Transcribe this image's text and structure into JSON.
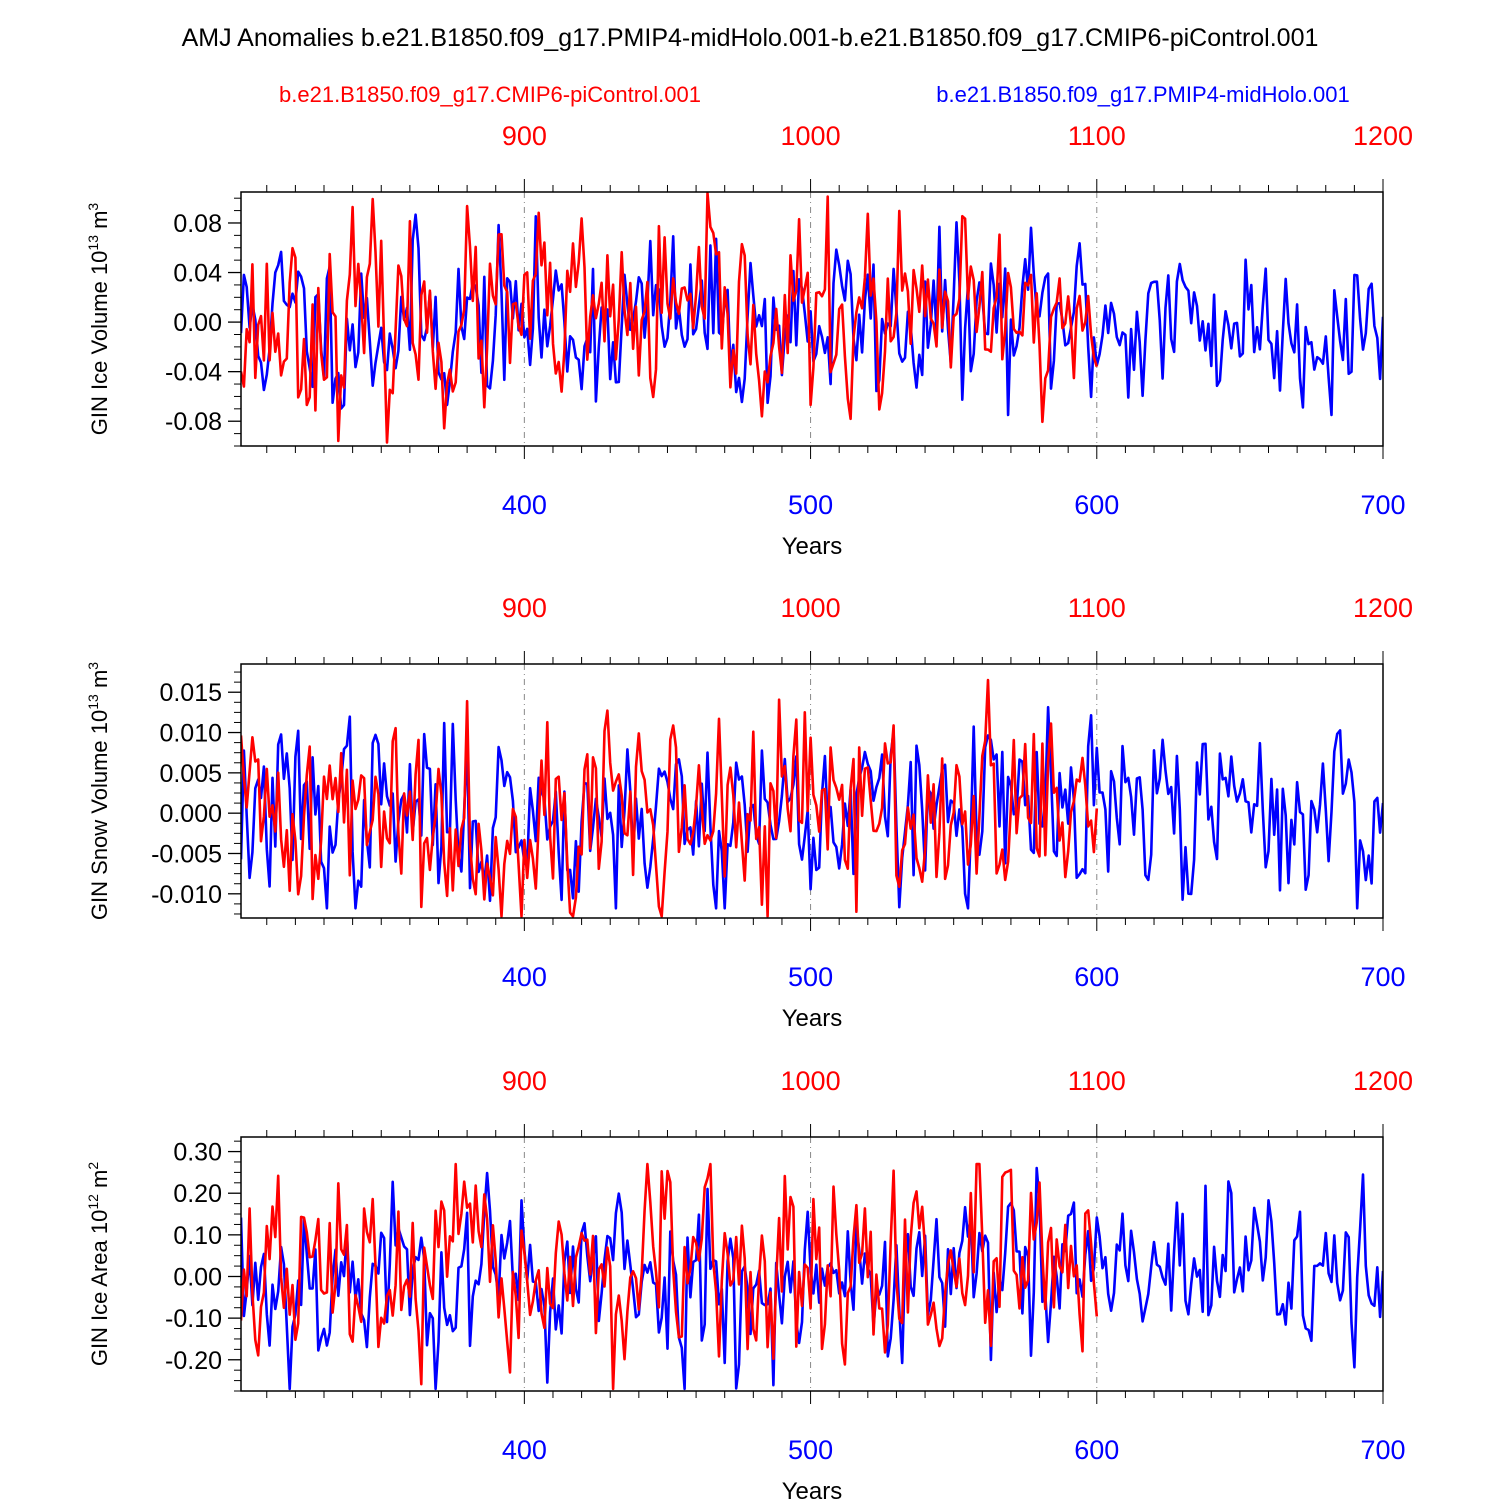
{
  "figure": {
    "title": "AMJ Anomalies b.e21.B1850.f09_g17.PMIP4-midHolo.001-b.e21.B1850.f09_g17.CMIP6-piControl.001",
    "legend_left": "b.e21.B1850.f09_g17.CMIP6-piControl.001",
    "legend_right": "b.e21.B1850.f09_g17.PMIP4-midHolo.001"
  },
  "colors": {
    "control": "#ff0000",
    "midholo": "#0000ff",
    "axis": "#000000",
    "refline": "#888888"
  },
  "chart_data": [
    {
      "type": "line",
      "title": "",
      "ylabel": "GIN Ice Volume 10^13 m^3",
      "ylabel_base": "GIN Ice Volume 10",
      "ylabel_exp": "13",
      "ylabel_unit": "m",
      "ylabel_unit_exp": "3",
      "xlabel": "Years",
      "xlim": [
        301,
        700
      ],
      "top_xlim": [
        801,
        1200
      ],
      "ylim": [
        -0.1,
        0.105
      ],
      "yticks": [
        -0.08,
        -0.04,
        0.0,
        0.04,
        0.08
      ],
      "ytick_labels": [
        "-0.08",
        "-0.04",
        "0.00",
        "0.04",
        "0.08"
      ],
      "xticks": [
        400,
        500,
        600,
        700
      ],
      "xtick_labels": [
        "400",
        "500",
        "600",
        "700"
      ],
      "top_xticks": [
        900,
        1000,
        1100,
        1200
      ],
      "top_xtick_labels": [
        "900",
        "1000",
        "1100",
        "1200"
      ],
      "reference_lines": [
        400,
        500,
        600
      ],
      "series": [
        {
          "name": "b.e21.B1850.f09_g17.PMIP4-midHolo.001",
          "color": "#0000ff",
          "x_start": 301,
          "x_end": 700,
          "amplitude": 0.032,
          "clip": [
            -0.075,
            0.092
          ],
          "seed": 11
        },
        {
          "name": "b.e21.B1850.f09_g17.CMIP6-piControl.001",
          "color": "#ff0000",
          "x_start": 301,
          "x_end": 600,
          "amplitude": 0.036,
          "clip": [
            -0.098,
            0.104
          ],
          "seed": 23
        }
      ]
    },
    {
      "type": "line",
      "title": "",
      "ylabel": "GIN Snow Volume 10^13 m^3",
      "ylabel_base": "GIN Snow Volume 10",
      "ylabel_exp": "13",
      "ylabel_unit": "m",
      "ylabel_unit_exp": "3",
      "xlabel": "Years",
      "xlim": [
        301,
        700
      ],
      "top_xlim": [
        801,
        1200
      ],
      "ylim": [
        -0.013,
        0.0185
      ],
      "yticks": [
        -0.01,
        -0.005,
        0.0,
        0.005,
        0.01,
        0.015
      ],
      "ytick_labels": [
        "-0.010",
        "-0.005",
        "0.000",
        "0.005",
        "0.010",
        "0.015"
      ],
      "xticks": [
        400,
        500,
        600,
        700
      ],
      "xtick_labels": [
        "400",
        "500",
        "600",
        "700"
      ],
      "top_xticks": [
        900,
        1000,
        1100,
        1200
      ],
      "top_xtick_labels": [
        "900",
        "1000",
        "1100",
        "1200"
      ],
      "reference_lines": [
        400,
        500,
        600
      ],
      "series": [
        {
          "name": "b.e21.B1850.f09_g17.PMIP4-midHolo.001",
          "color": "#0000ff",
          "x_start": 301,
          "x_end": 700,
          "amplitude": 0.0052,
          "clip": [
            -0.0118,
            0.0185
          ],
          "seed": 37
        },
        {
          "name": "b.e21.B1850.f09_g17.CMIP6-piControl.001",
          "color": "#ff0000",
          "x_start": 301,
          "x_end": 600,
          "amplitude": 0.0058,
          "clip": [
            -0.0128,
            0.018
          ],
          "seed": 41
        }
      ]
    },
    {
      "type": "line",
      "title": "",
      "ylabel": "GIN Ice Area 10^12 m^2",
      "ylabel_base": "GIN Ice Area 10",
      "ylabel_exp": "12",
      "ylabel_unit": "m",
      "ylabel_unit_exp": "2",
      "xlabel": "Years",
      "xlim": [
        301,
        700
      ],
      "top_xlim": [
        801,
        1200
      ],
      "ylim": [
        -0.275,
        0.335
      ],
      "yticks": [
        -0.2,
        -0.1,
        0.0,
        0.1,
        0.2,
        0.3
      ],
      "ytick_labels": [
        "-0.20",
        "-0.10",
        "0.00",
        "0.10",
        "0.20",
        "0.30"
      ],
      "xticks": [
        400,
        500,
        600,
        700
      ],
      "xtick_labels": [
        "400",
        "500",
        "600",
        "700"
      ],
      "top_xticks": [
        900,
        1000,
        1100,
        1200
      ],
      "top_xtick_labels": [
        "900",
        "1000",
        "1100",
        "1200"
      ],
      "reference_lines": [
        400,
        500,
        600
      ],
      "series": [
        {
          "name": "b.e21.B1850.f09_g17.PMIP4-midHolo.001",
          "color": "#0000ff",
          "x_start": 301,
          "x_end": 700,
          "amplitude": 0.1,
          "clip": [
            -0.27,
            0.33
          ],
          "seed": 53
        },
        {
          "name": "b.e21.B1850.f09_g17.CMIP6-piControl.001",
          "color": "#ff0000",
          "x_start": 301,
          "x_end": 600,
          "amplitude": 0.105,
          "clip": [
            -0.27,
            0.27
          ],
          "seed": 67
        }
      ]
    }
  ]
}
